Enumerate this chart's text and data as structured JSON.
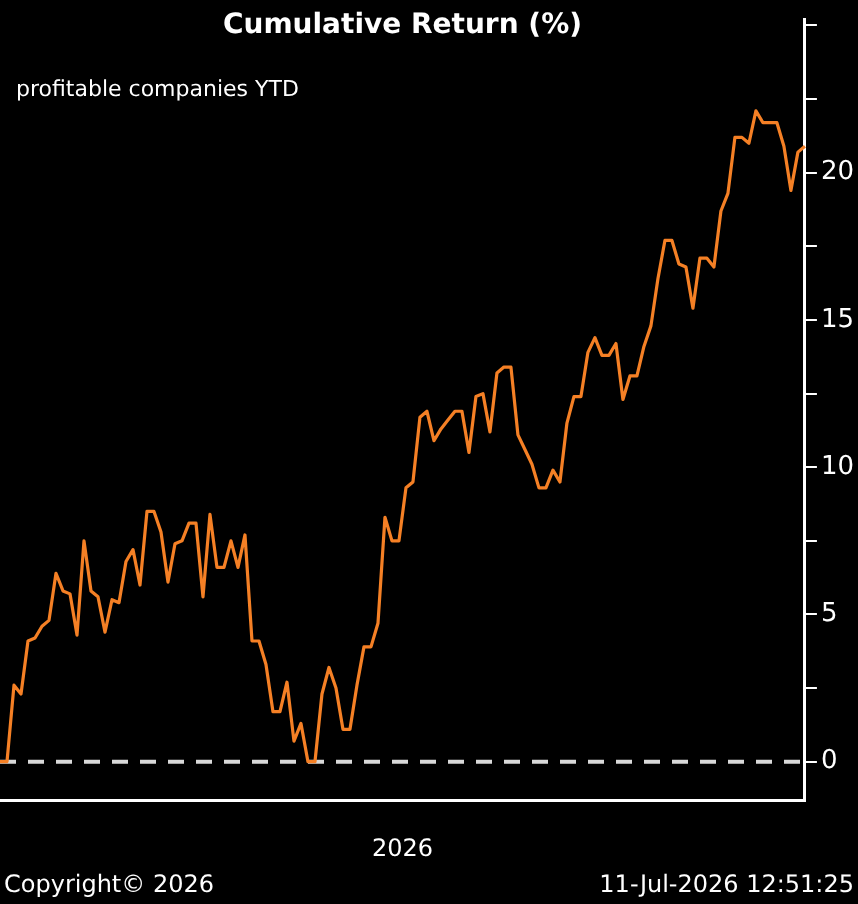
{
  "chart_data": {
    "type": "line",
    "title": "Cumulative Return (%)",
    "xlabel": "2026",
    "categories": [
      null,
      null,
      null,
      null,
      null,
      null,
      null,
      null,
      null,
      null,
      null,
      null,
      null,
      null,
      null,
      null,
      null,
      null,
      null,
      null,
      null,
      null,
      null,
      null,
      null,
      null,
      null,
      null,
      null,
      null,
      null,
      null,
      null,
      null,
      null,
      null,
      null,
      null,
      null,
      null,
      null,
      null,
      null,
      null,
      null,
      null,
      null,
      null,
      null,
      null,
      null,
      null,
      null,
      null,
      null,
      null,
      null,
      null,
      null,
      null,
      null,
      null,
      null,
      null,
      null,
      null,
      null,
      null,
      null,
      null,
      null,
      null,
      null,
      null,
      null,
      null,
      null,
      null,
      null,
      null,
      null,
      null,
      null,
      null,
      null,
      null,
      null,
      null,
      null,
      null,
      null,
      null,
      null,
      null,
      null,
      null,
      null,
      null,
      null,
      null,
      null,
      null,
      null,
      null,
      null,
      null,
      null,
      null,
      null,
      null,
      null,
      null,
      null,
      null,
      null,
      null
    ],
    "series": [
      {
        "color": "#f58025",
        "values": [
          0,
          0,
          2.6,
          2.3,
          4.1,
          4.2,
          4.6,
          4.8,
          6.4,
          5.8,
          5.7,
          4.3,
          7.5,
          5.8,
          5.6,
          4.4,
          5.5,
          5.4,
          6.8,
          7.2,
          6.0,
          8.5,
          8.5,
          7.8,
          6.1,
          7.4,
          7.5,
          8.1,
          8.1,
          5.6,
          8.4,
          6.6,
          6.6,
          7.5,
          6.6,
          7.7,
          4.1,
          4.1,
          3.3,
          1.7,
          1.7,
          2.7,
          0.7,
          1.3,
          0,
          0,
          2.3,
          3.2,
          2.5,
          1.1,
          1.1,
          2.6,
          3.9,
          3.9,
          4.7,
          8.3,
          7.5,
          7.5,
          9.3,
          9.5,
          11.7,
          11.9,
          10.9,
          11.3,
          11.6,
          11.9,
          11.9,
          10.5,
          12.4,
          12.5,
          11.2,
          13.2,
          13.4,
          13.4,
          11.1,
          10.6,
          10.1,
          9.3,
          9.3,
          9.9,
          9.5,
          11.5,
          12.4,
          12.4,
          13.9,
          14.4,
          13.8,
          13.8,
          14.2,
          12.3,
          13.1,
          13.1,
          14.1,
          14.8,
          16.4,
          17.7,
          17.7,
          16.9,
          16.8,
          15.4,
          17.1,
          17.1,
          16.8,
          18.7,
          19.3,
          21.2,
          21.2,
          21.0,
          22.1,
          21.7,
          21.7,
          21.7,
          20.9,
          19.4,
          20.7,
          20.9
        ]
      }
    ],
    "ylim": [
      -1.3,
      25.2
    ],
    "yticks": [
      0,
      {
        "value": 2.5,
        "label": null
      },
      5,
      {
        "value": 7.5,
        "label": null
      },
      10,
      {
        "value": 12.5,
        "label": null
      },
      15,
      {
        "value": 17.5,
        "label": null
      },
      20,
      {
        "value": 22.5,
        "label": null
      },
      {
        "value": 25,
        "label": null
      }
    ],
    "ref_lines": [
      {
        "axis": "y",
        "value": 0,
        "color": "#d9d9d9",
        "line_style": "dashed"
      }
    ],
    "annotations": [
      "profitable companies YTD",
      "Copyright© 2026",
      "11-Jul-2026 12:51:25"
    ],
    "grid": false,
    "legend": false,
    "marker": "none",
    "line_style": "solid"
  }
}
